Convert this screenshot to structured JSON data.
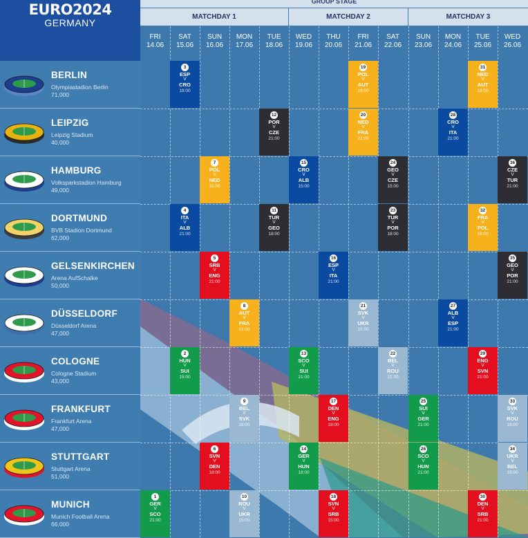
{
  "logo": {
    "title": "EURO2024",
    "subtitle": "GERMANY"
  },
  "stage": "GROUP STAGE",
  "matchdays": [
    "MATCHDAY 1",
    "MATCHDAY 2",
    "MATCHDAY 3"
  ],
  "days": [
    {
      "d": "FRI",
      "dt": "14.06"
    },
    {
      "d": "SAT",
      "dt": "15.06"
    },
    {
      "d": "SUN",
      "dt": "16.06"
    },
    {
      "d": "MON",
      "dt": "17.06"
    },
    {
      "d": "TUE",
      "dt": "18.06"
    },
    {
      "d": "WED",
      "dt": "19.06"
    },
    {
      "d": "THU",
      "dt": "20.06"
    },
    {
      "d": "FRI",
      "dt": "21.06"
    },
    {
      "d": "SAT",
      "dt": "22.06"
    },
    {
      "d": "SUN",
      "dt": "23.06"
    },
    {
      "d": "MON",
      "dt": "24.06"
    },
    {
      "d": "TUE",
      "dt": "25.06"
    },
    {
      "d": "WED",
      "dt": "26.06"
    }
  ],
  "venues": [
    {
      "city": "BERLIN",
      "stadium": "Olympiastadion Berlin",
      "capacity": "71,000"
    },
    {
      "city": "LEIPZIG",
      "stadium": "Leipzig Stadium",
      "capacity": "40,000"
    },
    {
      "city": "HAMBURG",
      "stadium": "Volksparkstadion Hamburg",
      "capacity": "49,000"
    },
    {
      "city": "DORTMUND",
      "stadium": "BVB Stadion Dortmund",
      "capacity": "62,000"
    },
    {
      "city": "GELSENKIRCHEN",
      "stadium": "Arena AufSchalke",
      "capacity": "50,000"
    },
    {
      "city": "DÜSSELDORF",
      "stadium": "Düsseldorf Arena",
      "capacity": "47,000"
    },
    {
      "city": "COLOGNE",
      "stadium": "Cologne Stadium",
      "capacity": "43,000"
    },
    {
      "city": "FRANKFURT",
      "stadium": "Frankfurt Arena",
      "capacity": "47,000"
    },
    {
      "city": "STUTTGART",
      "stadium": "Stuttgart Arena",
      "capacity": "51,000"
    },
    {
      "city": "MUNICH",
      "stadium": "Munich Football Arena",
      "capacity": "66,000"
    }
  ],
  "vs": "V",
  "matches": [
    {
      "no": "1",
      "home": "GER",
      "away": "SCO",
      "time": "21:00",
      "venue": 9,
      "day": 0,
      "color": "green"
    },
    {
      "no": "2",
      "home": "HUN",
      "away": "SUI",
      "time": "15:00",
      "venue": 6,
      "day": 1,
      "color": "green"
    },
    {
      "no": "3",
      "home": "ESP",
      "away": "CRO",
      "time": "18:00",
      "venue": 0,
      "day": 1,
      "color": "blue"
    },
    {
      "no": "4",
      "home": "ITA",
      "away": "ALB",
      "time": "21:00",
      "venue": 3,
      "day": 1,
      "color": "blue"
    },
    {
      "no": "5",
      "home": "SRB",
      "away": "ENG",
      "time": "21:00",
      "venue": 4,
      "day": 2,
      "color": "red"
    },
    {
      "no": "6",
      "home": "SVN",
      "away": "DEN",
      "time": "18:00",
      "venue": 8,
      "day": 2,
      "color": "red"
    },
    {
      "no": "7",
      "home": "POL",
      "away": "NED",
      "time": "15:00",
      "venue": 2,
      "day": 2,
      "color": "orange"
    },
    {
      "no": "8",
      "home": "AUT",
      "away": "FRA",
      "time": "21:00",
      "venue": 5,
      "day": 3,
      "color": "orange"
    },
    {
      "no": "9",
      "home": "BEL",
      "away": "SVK",
      "time": "18:00",
      "venue": 7,
      "day": 3,
      "color": "light"
    },
    {
      "no": "10",
      "home": "ROU",
      "away": "UKR",
      "time": "15:00",
      "venue": 9,
      "day": 3,
      "color": "light"
    },
    {
      "no": "11",
      "home": "TUR",
      "away": "GEO",
      "time": "18:00",
      "venue": 3,
      "day": 4,
      "color": "dark"
    },
    {
      "no": "12",
      "home": "POR",
      "away": "CZE",
      "time": "21:00",
      "venue": 1,
      "day": 4,
      "color": "dark"
    },
    {
      "no": "13",
      "home": "SCO",
      "away": "SUI",
      "time": "21:00",
      "venue": 6,
      "day": 5,
      "color": "green"
    },
    {
      "no": "14",
      "home": "GER",
      "away": "HUN",
      "time": "18:00",
      "venue": 8,
      "day": 5,
      "color": "green"
    },
    {
      "no": "15",
      "home": "CRO",
      "away": "ALB",
      "time": "15:00",
      "venue": 2,
      "day": 5,
      "color": "blue"
    },
    {
      "no": "16",
      "home": "ESP",
      "away": "ITA",
      "time": "21:00",
      "venue": 4,
      "day": 6,
      "color": "blue"
    },
    {
      "no": "17",
      "home": "DEN",
      "away": "ENG",
      "time": "18:00",
      "venue": 7,
      "day": 6,
      "color": "red"
    },
    {
      "no": "18",
      "home": "SVN",
      "away": "SRB",
      "time": "15:00",
      "venue": 9,
      "day": 6,
      "color": "red"
    },
    {
      "no": "19",
      "home": "POL",
      "away": "AUT",
      "time": "18:00",
      "venue": 0,
      "day": 7,
      "color": "orange"
    },
    {
      "no": "20",
      "home": "NED",
      "away": "FRA",
      "time": "21:00",
      "venue": 1,
      "day": 7,
      "color": "orange"
    },
    {
      "no": "21",
      "home": "SVK",
      "away": "UKR",
      "time": "15:00",
      "venue": 5,
      "day": 7,
      "color": "light"
    },
    {
      "no": "22",
      "home": "BEL",
      "away": "ROU",
      "time": "21:00",
      "venue": 6,
      "day": 8,
      "color": "light"
    },
    {
      "no": "23",
      "home": "TUR",
      "away": "POR",
      "time": "18:00",
      "venue": 3,
      "day": 8,
      "color": "dark"
    },
    {
      "no": "24",
      "home": "GEO",
      "away": "CZE",
      "time": "15:00",
      "venue": 2,
      "day": 8,
      "color": "dark"
    },
    {
      "no": "25",
      "home": "SUI",
      "away": "GER",
      "time": "21:00",
      "venue": 7,
      "day": 9,
      "color": "green"
    },
    {
      "no": "26",
      "home": "SCO",
      "away": "HUN",
      "time": "21:00",
      "venue": 8,
      "day": 9,
      "color": "green"
    },
    {
      "no": "27",
      "home": "ALB",
      "away": "ESP",
      "time": "21:00",
      "venue": 5,
      "day": 10,
      "color": "blue"
    },
    {
      "no": "28",
      "home": "CRO",
      "away": "ITA",
      "time": "21:00",
      "venue": 1,
      "day": 10,
      "color": "blue"
    },
    {
      "no": "29",
      "home": "ENG",
      "away": "SVN",
      "time": "21:00",
      "venue": 6,
      "day": 11,
      "color": "red"
    },
    {
      "no": "30",
      "home": "DEN",
      "away": "SRB",
      "time": "21:00",
      "venue": 9,
      "day": 11,
      "color": "red"
    },
    {
      "no": "31",
      "home": "NED",
      "away": "AUT",
      "time": "18:00",
      "venue": 0,
      "day": 11,
      "color": "orange"
    },
    {
      "no": "32",
      "home": "FRA",
      "away": "POL",
      "time": "18:00",
      "venue": 3,
      "day": 11,
      "color": "orange"
    },
    {
      "no": "33",
      "home": "SVK",
      "away": "ROU",
      "time": "18:00",
      "venue": 7,
      "day": 12,
      "color": "light"
    },
    {
      "no": "34",
      "home": "UKR",
      "away": "BEL",
      "time": "18:00",
      "venue": 8,
      "day": 12,
      "color": "light"
    },
    {
      "no": "35",
      "home": "GEO",
      "away": "POR",
      "time": "21:00",
      "venue": 4,
      "day": 12,
      "color": "dark"
    },
    {
      "no": "36",
      "home": "CZE",
      "away": "TUR",
      "time": "21:00",
      "venue": 2,
      "day": 12,
      "color": "dark"
    }
  ],
  "colors": {
    "blue": "#0a4aa0",
    "orange": "#f6b11d",
    "dark": "#2d2d33",
    "red": "#e30f1f",
    "green": "#129b4a",
    "light": "#9ab8d2",
    "background": "#3d79ad",
    "header": "#1c4fa0"
  }
}
